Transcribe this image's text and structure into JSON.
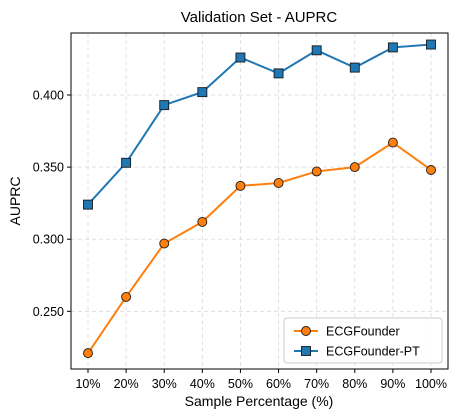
{
  "chart_data": {
    "type": "line",
    "title": "Validation Set - AUPRC",
    "xlabel": "Sample Percentage (%)",
    "ylabel": "AUPRC",
    "categories": [
      "10%",
      "20%",
      "30%",
      "40%",
      "50%",
      "60%",
      "70%",
      "80%",
      "90%",
      "100%"
    ],
    "ylim": [
      0.21,
      0.443
    ],
    "yticks": [
      0.25,
      0.3,
      0.35,
      0.4
    ],
    "ytick_labels": [
      "0.250",
      "0.300",
      "0.350",
      "0.400"
    ],
    "grid": true,
    "legend_position": "lower-right",
    "series": [
      {
        "name": "ECGFounder",
        "color": "#ff7f0e",
        "marker": "circle",
        "values": [
          0.221,
          0.26,
          0.297,
          0.312,
          0.337,
          0.339,
          0.347,
          0.35,
          0.367,
          0.348
        ]
      },
      {
        "name": "ECGFounder-PT",
        "color": "#1f77b4",
        "marker": "square",
        "values": [
          0.324,
          0.353,
          0.393,
          0.402,
          0.426,
          0.415,
          0.431,
          0.419,
          0.433,
          0.435
        ]
      }
    ]
  }
}
